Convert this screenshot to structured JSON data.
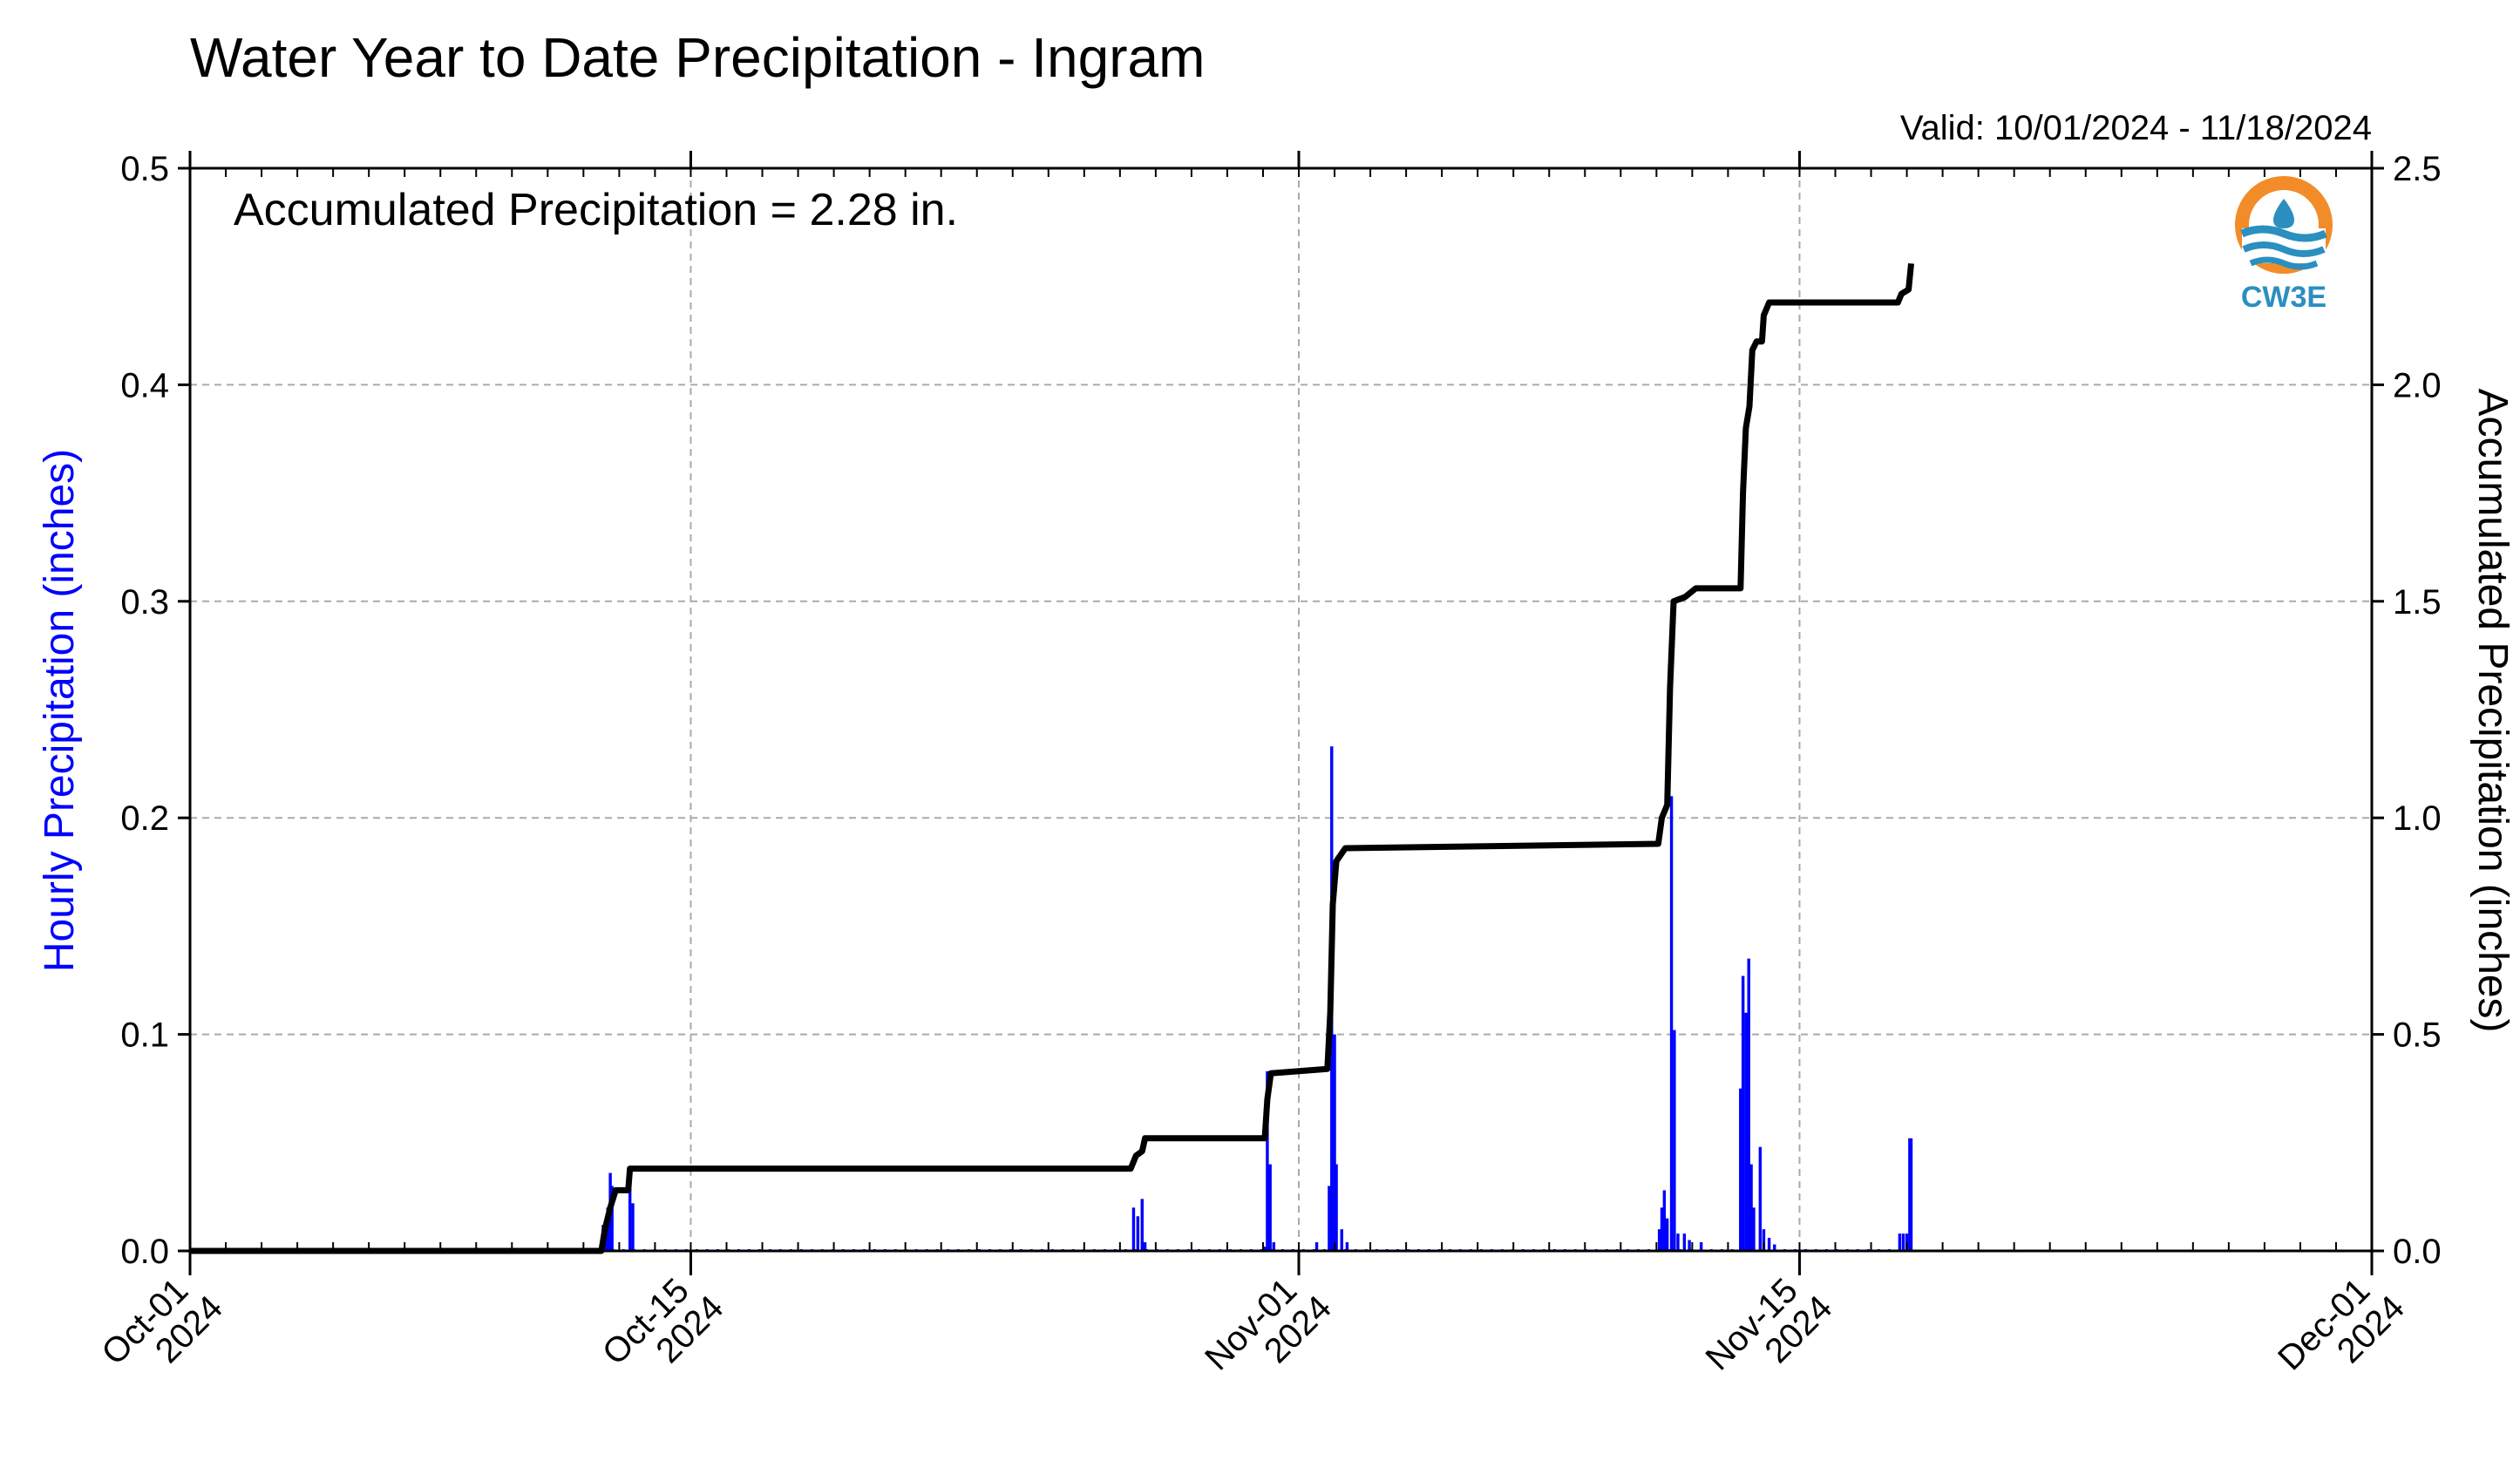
{
  "chart_data": {
    "type": "bar+line",
    "title": "Water Year to Date Precipitation - Ingram",
    "valid_label": "Valid: 10/01/2024 - 11/18/2024",
    "annotation": "Accumulated Precipitation = 2.28 in.",
    "ylabel_left": "Hourly Precipitation (inches)",
    "ylabel_right": "Accumulated Precipitation (inches)",
    "xlim_days": [
      0,
      61
    ],
    "ylim_left": [
      0,
      0.5
    ],
    "ylim_right": [
      0,
      2.5
    ],
    "x_ticks": [
      {
        "day": 0,
        "line1": "Oct-01",
        "line2": "2024"
      },
      {
        "day": 14,
        "line1": "Oct-15",
        "line2": "2024"
      },
      {
        "day": 31,
        "line1": "Nov-01",
        "line2": "2024"
      },
      {
        "day": 45,
        "line1": "Nov-15",
        "line2": "2024"
      },
      {
        "day": 61,
        "line1": "Dec-01",
        "line2": "2024"
      }
    ],
    "y_ticks_left": [
      "0.0",
      "0.1",
      "0.2",
      "0.3",
      "0.4",
      "0.5"
    ],
    "y_ticks_right": [
      "0.0",
      "0.5",
      "1.0",
      "1.5",
      "2.0",
      "2.5"
    ],
    "grid": true,
    "bar_color": "#0000ff",
    "line_color": "#000000",
    "hourly_series": {
      "name": "Hourly Precipitation",
      "points": [
        [
          11.55,
          0.012
        ],
        [
          11.62,
          0.01
        ],
        [
          11.68,
          0.02
        ],
        [
          11.75,
          0.036
        ],
        [
          11.8,
          0.03
        ],
        [
          12.3,
          0.03
        ],
        [
          12.38,
          0.022
        ],
        [
          26.38,
          0.02
        ],
        [
          26.5,
          0.016
        ],
        [
          26.62,
          0.024
        ],
        [
          26.7,
          0.004
        ],
        [
          30.05,
          0.002
        ],
        [
          30.12,
          0.083
        ],
        [
          30.2,
          0.04
        ],
        [
          30.3,
          0.004
        ],
        [
          31.5,
          0.004
        ],
        [
          31.85,
          0.03
        ],
        [
          31.92,
          0.233
        ],
        [
          32.0,
          0.1
        ],
        [
          32.05,
          0.04
        ],
        [
          32.2,
          0.01
        ],
        [
          32.35,
          0.004
        ],
        [
          41.08,
          0.01
        ],
        [
          41.15,
          0.02
        ],
        [
          41.22,
          0.028
        ],
        [
          41.3,
          0.015
        ],
        [
          41.42,
          0.21
        ],
        [
          41.5,
          0.102
        ],
        [
          41.6,
          0.008
        ],
        [
          41.78,
          0.008
        ],
        [
          41.92,
          0.005
        ],
        [
          42.25,
          0.004
        ],
        [
          43.35,
          0.075
        ],
        [
          43.42,
          0.127
        ],
        [
          43.5,
          0.11
        ],
        [
          43.58,
          0.135
        ],
        [
          43.65,
          0.04
        ],
        [
          43.72,
          0.02
        ],
        [
          43.9,
          0.048
        ],
        [
          44.0,
          0.01
        ],
        [
          44.15,
          0.006
        ],
        [
          44.3,
          0.003
        ],
        [
          47.8,
          0.008
        ],
        [
          47.9,
          0.008
        ],
        [
          48.0,
          0.008
        ],
        [
          48.08,
          0.052
        ],
        [
          48.12,
          0.052
        ]
      ]
    },
    "accum_series": {
      "name": "Accumulated Precipitation",
      "points": [
        [
          0,
          0
        ],
        [
          11.5,
          0
        ],
        [
          11.6,
          0.05
        ],
        [
          11.75,
          0.1
        ],
        [
          11.9,
          0.14
        ],
        [
          12.25,
          0.14
        ],
        [
          12.3,
          0.19
        ],
        [
          26.3,
          0.19
        ],
        [
          26.45,
          0.22
        ],
        [
          26.62,
          0.23
        ],
        [
          26.7,
          0.26
        ],
        [
          30.05,
          0.26
        ],
        [
          30.12,
          0.35
        ],
        [
          30.22,
          0.41
        ],
        [
          31.8,
          0.42
        ],
        [
          31.88,
          0.55
        ],
        [
          31.95,
          0.8
        ],
        [
          32.05,
          0.9
        ],
        [
          32.3,
          0.93
        ],
        [
          41.05,
          0.94
        ],
        [
          41.15,
          1.0
        ],
        [
          41.3,
          1.03
        ],
        [
          41.38,
          1.3
        ],
        [
          41.48,
          1.5
        ],
        [
          41.8,
          1.51
        ],
        [
          42.1,
          1.53
        ],
        [
          43.35,
          1.53
        ],
        [
          43.42,
          1.75
        ],
        [
          43.5,
          1.9
        ],
        [
          43.6,
          1.95
        ],
        [
          43.68,
          2.08
        ],
        [
          43.8,
          2.1
        ],
        [
          43.95,
          2.1
        ],
        [
          44.0,
          2.16
        ],
        [
          44.15,
          2.19
        ],
        [
          47.75,
          2.19
        ],
        [
          47.85,
          2.21
        ],
        [
          48.05,
          2.22
        ],
        [
          48.12,
          2.28
        ]
      ]
    }
  },
  "logo": {
    "text": "CW3E",
    "ring_color": "#f28c28",
    "wave_color": "#2b8fbf"
  }
}
